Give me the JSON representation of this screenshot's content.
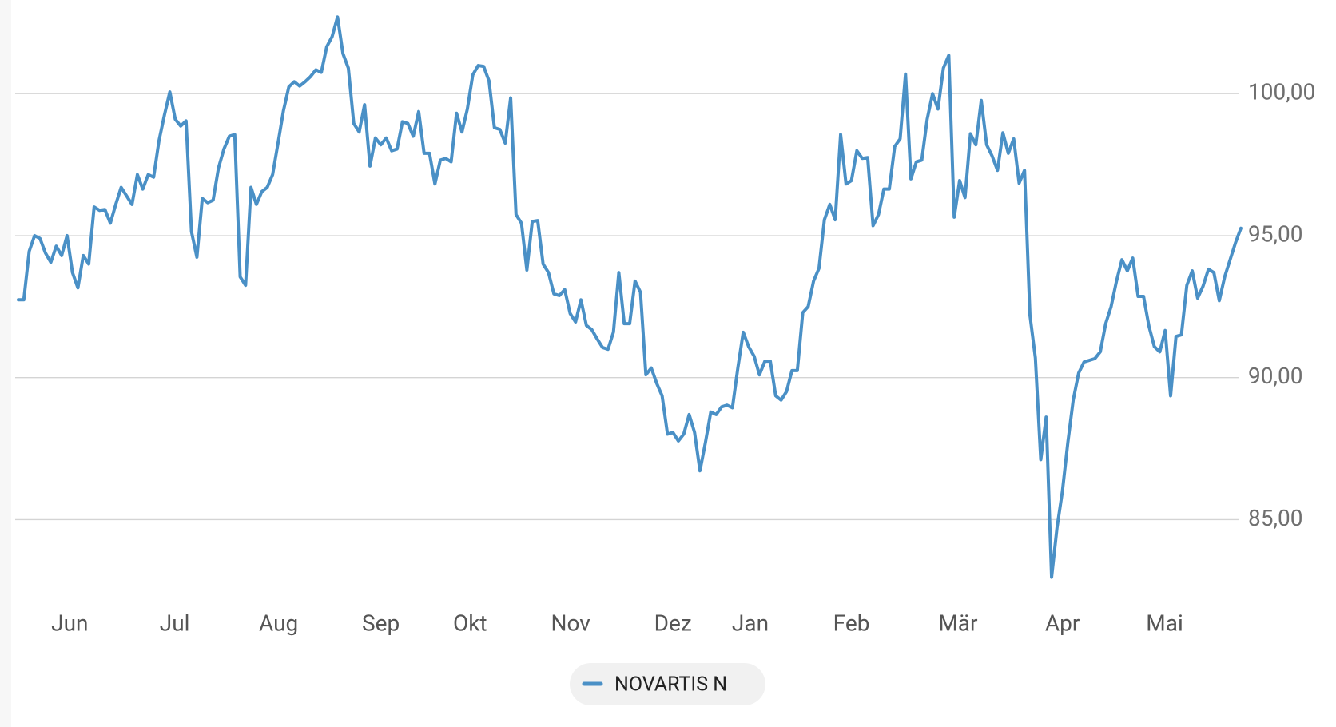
{
  "chart_data": {
    "type": "line",
    "series": [
      {
        "name": "NOVARTIS N",
        "color": "#4a90c6",
        "values": [
          92.74,
          92.74,
          94.45,
          95.0,
          94.9,
          94.39,
          94.06,
          94.63,
          94.3,
          95.0,
          93.7,
          93.16,
          94.3,
          94.0,
          96.01,
          95.89,
          95.92,
          95.44,
          96.1,
          96.7,
          96.4,
          96.1,
          97.15,
          96.64,
          97.15,
          97.06,
          98.35,
          99.25,
          100.06,
          99.1,
          98.86,
          99.04,
          95.14,
          94.24,
          96.31,
          96.16,
          96.25,
          97.39,
          98.05,
          98.5,
          98.56,
          93.55,
          93.25,
          96.7,
          96.1,
          96.55,
          96.7,
          97.15,
          98.26,
          99.4,
          100.24,
          100.42,
          100.27,
          100.42,
          100.6,
          100.84,
          100.75,
          101.65,
          102.01,
          102.7,
          101.41,
          100.9,
          98.95,
          98.65,
          99.61,
          97.45,
          98.44,
          98.2,
          98.44,
          97.99,
          98.05,
          99.01,
          98.95,
          98.5,
          99.37,
          97.9,
          97.9,
          96.82,
          97.66,
          97.72,
          97.6,
          99.31,
          98.65,
          99.46,
          100.66,
          100.99,
          100.96,
          100.45,
          98.8,
          98.74,
          98.26,
          99.85,
          95.74,
          95.44,
          93.79,
          95.5,
          95.53,
          94.0,
          93.7,
          92.95,
          92.89,
          93.1,
          92.26,
          91.96,
          92.74,
          91.84,
          91.69,
          91.36,
          91.06,
          91.0,
          91.6,
          93.7,
          91.9,
          91.9,
          93.4,
          93.01,
          90.1,
          90.34,
          89.8,
          89.36,
          88.01,
          88.07,
          87.77,
          88.01,
          88.7,
          88.07,
          86.72,
          87.71,
          88.79,
          88.7,
          88.97,
          89.03,
          88.94,
          90.34,
          91.6,
          91.09,
          90.76,
          90.1,
          90.58,
          90.58,
          89.36,
          89.21,
          89.51,
          90.25,
          90.25,
          92.29,
          92.5,
          93.4,
          93.85,
          95.56,
          96.1,
          95.56,
          98.56,
          96.82,
          96.94,
          97.99,
          97.72,
          97.75,
          95.35,
          95.74,
          96.64,
          96.64,
          98.14,
          98.41,
          100.69,
          97.0,
          97.6,
          97.66,
          99.1,
          100.0,
          99.46,
          100.9,
          101.35,
          95.65,
          96.94,
          96.34,
          98.59,
          98.2,
          99.76,
          98.2,
          97.81,
          97.3,
          98.62,
          97.9,
          98.41,
          96.85,
          97.3,
          92.2,
          90.7,
          87.11,
          88.61,
          82.97,
          84.71,
          86.0,
          87.71,
          89.21,
          90.16,
          90.55,
          90.61,
          90.67,
          90.91,
          91.9,
          92.5,
          93.4,
          94.15,
          93.76,
          94.21,
          92.86,
          92.86,
          91.81,
          91.09,
          90.91,
          91.66,
          89.36,
          91.45,
          91.51,
          93.25,
          93.76,
          92.8,
          93.22,
          93.82,
          93.7,
          92.71,
          93.55,
          94.15,
          94.75,
          95.26
        ]
      }
    ],
    "xlim": [
      0,
      226
    ],
    "xticks": [
      {
        "value": 9.5,
        "label": "Jun"
      },
      {
        "value": 28.9,
        "label": "Jul"
      },
      {
        "value": 48.1,
        "label": "Aug"
      },
      {
        "value": 67,
        "label": "Sep"
      },
      {
        "value": 83.5,
        "label": "Okt"
      },
      {
        "value": 102.1,
        "label": "Nov"
      },
      {
        "value": 121,
        "label": "Dez"
      },
      {
        "value": 135.3,
        "label": "Jan"
      },
      {
        "value": 154,
        "label": "Feb"
      },
      {
        "value": 173.7,
        "label": "Mär"
      },
      {
        "value": 193,
        "label": "Apr"
      },
      {
        "value": 211.9,
        "label": "Mai"
      }
    ],
    "ylim": [
      82.5,
      103
    ],
    "yticks": [
      {
        "value": 85,
        "label": "85,00"
      },
      {
        "value": 90,
        "label": "90,00"
      },
      {
        "value": 95,
        "label": "95,00"
      },
      {
        "value": 100,
        "label": "100,00"
      }
    ],
    "grid": true
  }
}
